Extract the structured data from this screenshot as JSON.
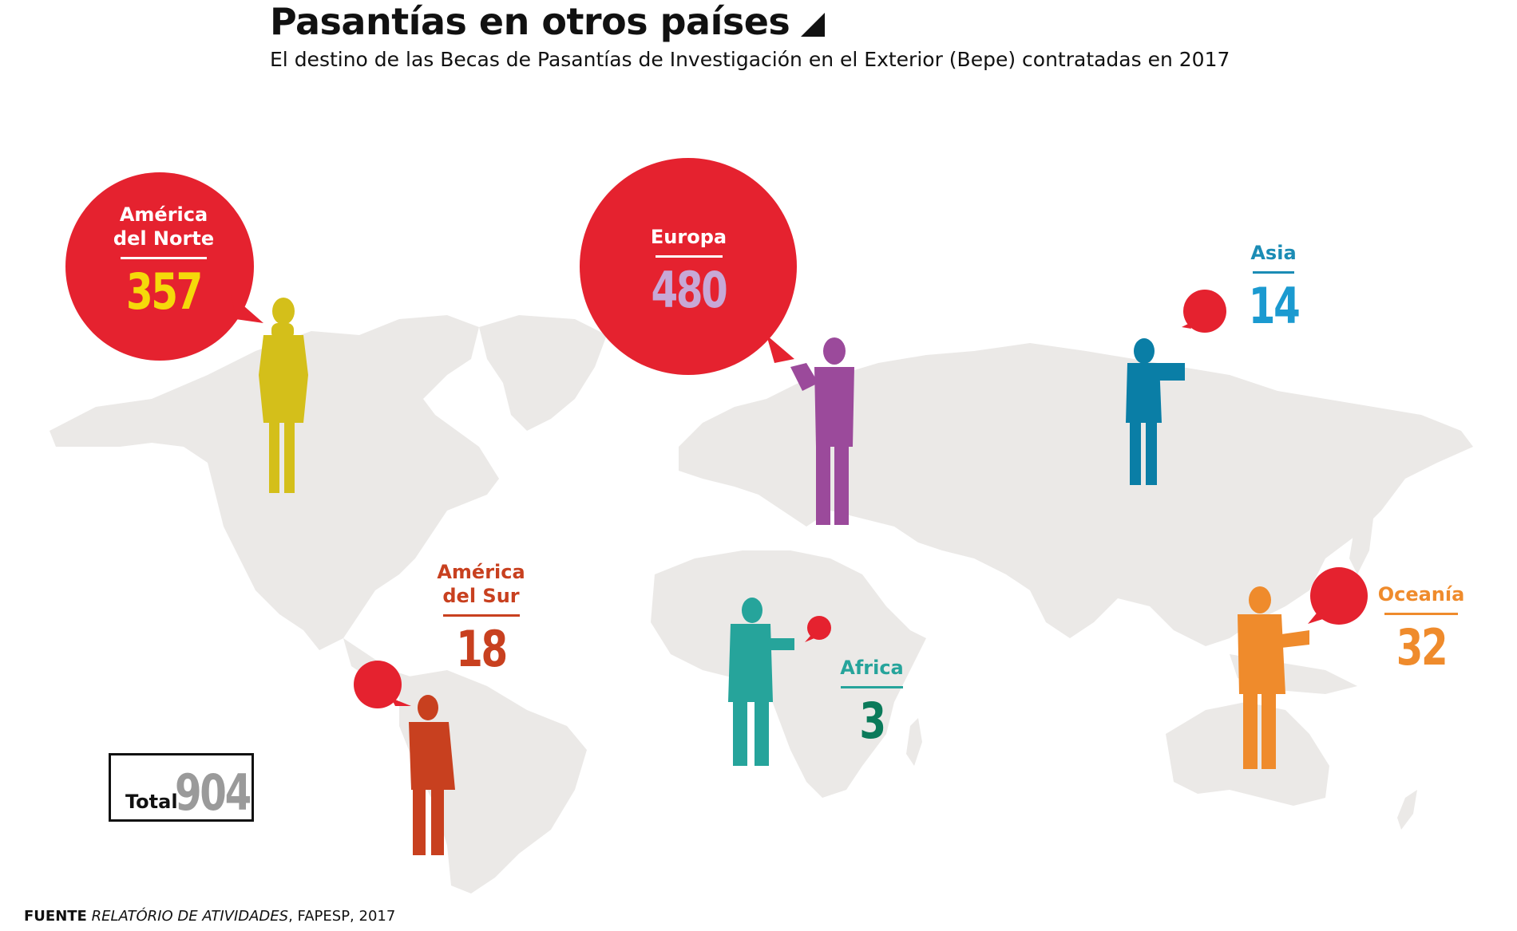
{
  "title": "Pasantías en otros países",
  "subtitle": "El destino de las Becas de Pasantías de Investigación en el Exterior (Bepe) contratadas en 2017",
  "colors": {
    "land": "#ebe9e7",
    "bubble": "#e5222f",
    "north_america": "#d4bf1a",
    "europe": "#9b4a9b",
    "asia": "#0a7ea6",
    "south_america": "#c8401f",
    "africa": "#26a49b",
    "oceania": "#ef8b2c"
  },
  "regions": {
    "north_america": {
      "name_line1": "América",
      "name_line2": "del Norte",
      "value": "357",
      "value_color": "#f5d90a"
    },
    "europe": {
      "name_line1": "Europa",
      "value": "480",
      "value_color": "#c7a8d6"
    },
    "asia": {
      "name_line1": "Asia",
      "value": "14",
      "label_color": "#1b8cb5",
      "value_color": "#1b9ad0"
    },
    "south_america": {
      "name_line1": "América",
      "name_line2": "del Sur",
      "value": "18",
      "label_color": "#c8401f"
    },
    "africa": {
      "name_line1": "Africa",
      "value": "3",
      "label_color": "#26a49b",
      "value_color": "#0b7a5a"
    },
    "oceania": {
      "name_line1": "Oceanía",
      "value": "32",
      "label_color": "#ef8b2c"
    }
  },
  "total": {
    "label": "Total",
    "value": "904"
  },
  "source": {
    "prefix": "FUENTE",
    "publication": "RELATÓRIO DE ATIVIDADES",
    "rest": ", FAPESP, 2017"
  }
}
